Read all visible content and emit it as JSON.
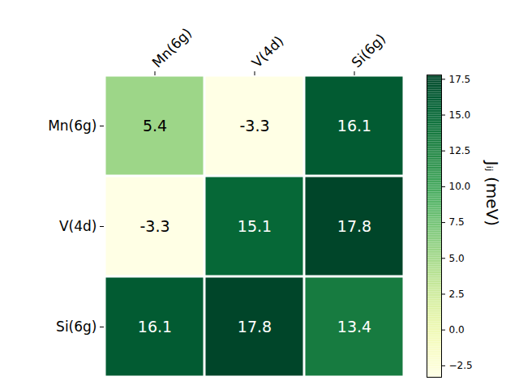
{
  "chart_data": {
    "type": "heatmap",
    "x_categories": [
      "Mn(6g)",
      "V(4d)",
      "Si(6g)"
    ],
    "y_categories": [
      "Mn(6g)",
      "V(4d)",
      "Si(6g)"
    ],
    "cells": [
      [
        5.4,
        -3.3,
        16.1
      ],
      [
        -3.3,
        15.1,
        17.8
      ],
      [
        16.1,
        17.8,
        13.4
      ]
    ],
    "data_labels": true,
    "colorbar": {
      "label": "Jᵢⱼ (meV)",
      "color": "YlGn",
      "range": [
        -3.3,
        17.8
      ],
      "ticks": [
        {
          "value": -2.5,
          "label": "−2.5"
        },
        {
          "value": 0,
          "label": "0.0"
        },
        {
          "value": 2.5,
          "label": "2.5"
        },
        {
          "value": 5,
          "label": "5.0"
        },
        {
          "value": 7.5,
          "label": "7.5"
        },
        {
          "value": 10,
          "label": "10.0"
        },
        {
          "value": 12.5,
          "label": "12.5"
        },
        {
          "value": 15,
          "label": "15.0"
        },
        {
          "value": 17.5,
          "label": "17.5"
        }
      ]
    }
  }
}
